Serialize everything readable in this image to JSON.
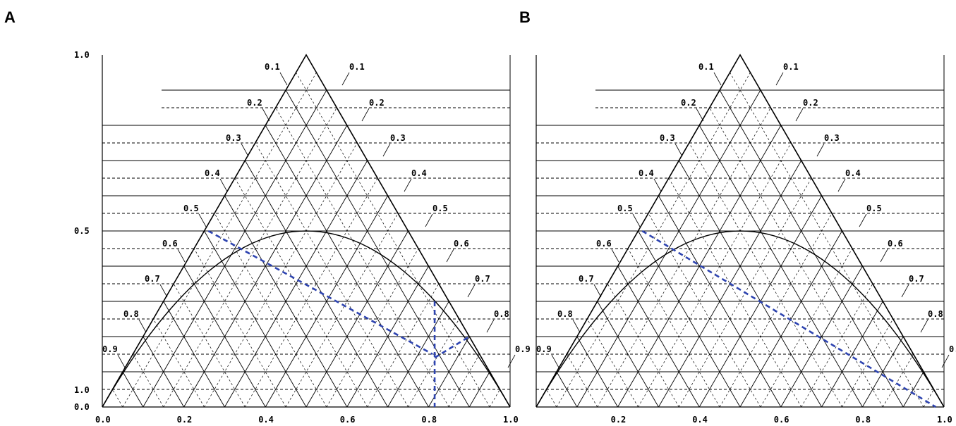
{
  "panels": [
    {
      "letter": "A",
      "chart_data": {
        "type": "line",
        "title": "",
        "xlabel": "",
        "ylabel": "",
        "xlim": [
          0.0,
          1.0
        ],
        "ylim": [
          0.0,
          1.0
        ],
        "x_ticks": [
          "0.0",
          "0.2",
          "0.4",
          "0.6",
          "0.8",
          "1.0"
        ],
        "y_ticks_left": [
          "1.0",
          "0.5",
          "0.0"
        ],
        "diagonal_labels": [
          "0.1",
          "0.2",
          "0.3",
          "0.4",
          "0.5",
          "0.6",
          "0.7",
          "0.8",
          "0.9"
        ],
        "bottom_left_extra_label": "1.0",
        "series": [
          {
            "values": [
              [
                0.0,
                0.0
              ],
              [
                0.5,
                0.5
              ],
              [
                1.0,
                0.0
              ]
            ]
          },
          {
            "values": [
              [
                0.0,
                0.0
              ],
              [
                0.1,
                0.18
              ],
              [
                0.2,
                0.32
              ],
              [
                0.3,
                0.42
              ],
              [
                0.4,
                0.48
              ],
              [
                0.5,
                0.5
              ],
              [
                0.6,
                0.48
              ],
              [
                0.7,
                0.42
              ],
              [
                0.8,
                0.32
              ],
              [
                0.9,
                0.18
              ],
              [
                1.0,
                0.0
              ]
            ]
          },
          {
            "values": [
              [
                0.26,
                0.5
              ],
              [
                0.81,
                0.15
              ]
            ]
          },
          {
            "values": [
              [
                0.815,
                0.3
              ],
              [
                0.815,
                0.0
              ]
            ]
          },
          {
            "values": [
              [
                0.815,
                0.14
              ],
              [
                0.9,
                0.2
              ]
            ]
          }
        ],
        "colors": {
          "curves": "#000000",
          "tie_lines": "#2e44b0"
        },
        "grid": true
      }
    },
    {
      "letter": "B",
      "chart_data": {
        "type": "line",
        "title": "",
        "xlabel": "",
        "ylabel": "",
        "xlim": [
          0.0,
          1.0
        ],
        "ylim": [
          0.0,
          1.0
        ],
        "x_ticks": [
          "0.2",
          "0.4",
          "0.6",
          "0.8",
          "1.0"
        ],
        "y_ticks_left": [],
        "diagonal_labels": [
          "0.1",
          "0.2",
          "0.3",
          "0.4",
          "0.5",
          "0.6",
          "0.7",
          "0.8",
          "0.9"
        ],
        "bottom_left_extra_label": "",
        "series": [
          {
            "values": [
              [
                0.0,
                0.0
              ],
              [
                0.5,
                0.5
              ],
              [
                1.0,
                0.0
              ]
            ]
          },
          {
            "values": [
              [
                0.0,
                0.0
              ],
              [
                0.1,
                0.18
              ],
              [
                0.2,
                0.32
              ],
              [
                0.3,
                0.42
              ],
              [
                0.4,
                0.48
              ],
              [
                0.5,
                0.5
              ],
              [
                0.6,
                0.48
              ],
              [
                0.7,
                0.42
              ],
              [
                0.8,
                0.32
              ],
              [
                0.9,
                0.18
              ],
              [
                1.0,
                0.0
              ]
            ]
          },
          {
            "values": [
              [
                0.26,
                0.5
              ],
              [
                0.98,
                0.0
              ]
            ]
          }
        ],
        "colors": {
          "curves": "#000000",
          "tie_lines": "#2e44b0"
        },
        "grid": true
      }
    }
  ]
}
